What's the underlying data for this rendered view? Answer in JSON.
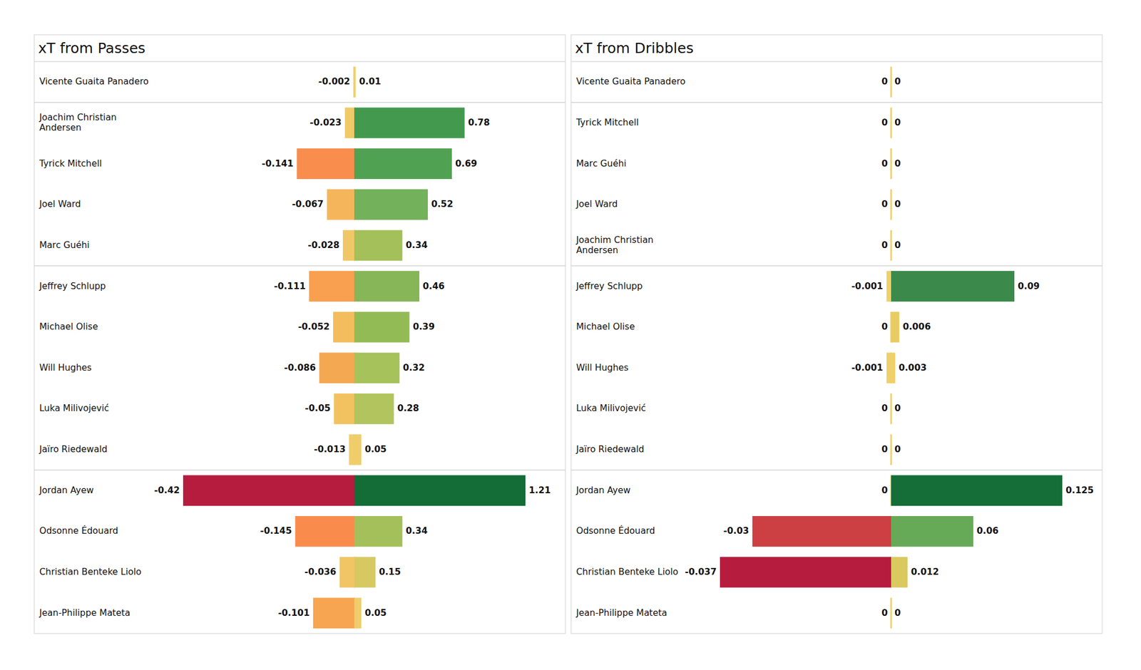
{
  "chart_data": [
    {
      "type": "bar",
      "orientation": "horizontal",
      "data_labels": true,
      "tick_labels": "y",
      "title": "xT from Passes",
      "categories": [
        "Vicente Guaita Panadero",
        "Joachim Christian Andersen",
        "Tyrick Mitchell",
        "Joel Ward",
        "Marc Guéhi",
        "Jeffrey  Schlupp",
        "Michael Olise",
        "Will Hughes",
        "Luka Milivojević",
        "Jaïro Riedewald",
        "Jordan Ayew",
        "Odsonne Édouard",
        "Christian Benteke Liolo",
        "Jean-Philippe Mateta"
      ],
      "groups": [
        1,
        4,
        5,
        4
      ],
      "series": [
        {
          "values": [
            -0.002,
            -0.023,
            -0.141,
            -0.067,
            -0.028,
            -0.111,
            -0.052,
            -0.086,
            -0.05,
            -0.013,
            -0.42,
            -0.145,
            -0.036,
            -0.101
          ],
          "colors": [
            "#f0d06c",
            "#f0c968",
            "#f98d4e",
            "#f5b55a",
            "#f0c766",
            "#f89f50",
            "#f3bd5d",
            "#f5a852",
            "#f3c260",
            "#efcd6b",
            "#b51c3e",
            "#f98c4d",
            "#f1c563",
            "#f7a550"
          ]
        },
        {
          "values": [
            0.01,
            0.78,
            0.69,
            0.52,
            0.34,
            0.46,
            0.39,
            0.32,
            0.28,
            0.05,
            1.21,
            0.34,
            0.15,
            0.05
          ],
          "colors": [
            "#efd06b",
            "#439a4f",
            "#50a252",
            "#73b15a",
            "#a3c05a",
            "#86b657",
            "#93bb55",
            "#a5c25b",
            "#b1c45e",
            "#f0cc6a",
            "#146c36",
            "#a3c05a",
            "#d7c962",
            "#f0cc6a"
          ]
        }
      ]
    },
    {
      "type": "bar",
      "orientation": "horizontal",
      "data_labels": true,
      "tick_labels": "y",
      "title": "xT from Dribbles",
      "categories": [
        "Vicente Guaita Panadero",
        "Tyrick Mitchell",
        "Marc Guéhi",
        "Joel Ward",
        "Joachim Christian Andersen",
        "Jeffrey  Schlupp",
        "Michael Olise",
        "Will Hughes",
        "Luka Milivojević",
        "Jaïro Riedewald",
        "Jordan Ayew",
        "Odsonne Édouard",
        "Christian Benteke Liolo",
        "Jean-Philippe Mateta"
      ],
      "groups": [
        1,
        4,
        5,
        4
      ],
      "series": [
        {
          "values": [
            0,
            0,
            0,
            0,
            0,
            -0.001,
            0,
            -0.001,
            0,
            0,
            0,
            -0.03,
            -0.037,
            0
          ],
          "colors": [
            "#f0d06c",
            "#f0d06c",
            "#f0d06c",
            "#f0d06c",
            "#f0d06c",
            "#f0d06c",
            "#f0d06c",
            "#f0d06c",
            "#f0d06c",
            "#f0d06c",
            "#f0d06c",
            "#cc4044",
            "#b51c3e",
            "#f0d06c"
          ]
        },
        {
          "values": [
            0,
            0,
            0,
            0,
            0,
            0.09,
            0.006,
            0.003,
            0,
            0,
            0.125,
            0.06,
            0.012,
            0
          ],
          "colors": [
            "#f0d06c",
            "#f0d06c",
            "#f0d06c",
            "#f0d06c",
            "#f0d06c",
            "#3b8a4b",
            "#e8cc63",
            "#efd06a",
            "#f0d06c",
            "#f0d06c",
            "#156d38",
            "#66aa58",
            "#dac95e",
            "#f0d06c"
          ]
        }
      ]
    }
  ]
}
